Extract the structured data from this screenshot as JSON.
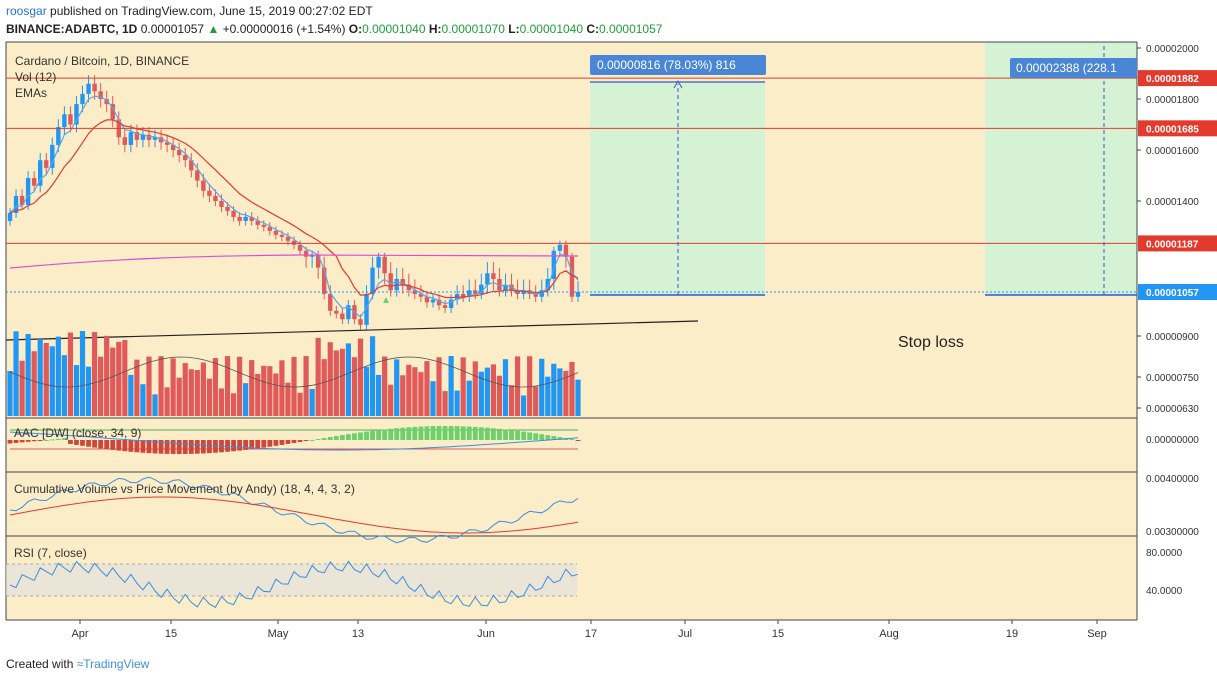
{
  "header": {
    "user": "roosgar",
    "published": " published on TradingView.com, June 15, 2019 00:27:02 EDT",
    "symbol": "BINANCE:ADABTC, 1D",
    "last": "0.00001057",
    "change": "+0.00000016 (+1.54%)",
    "o_label": "O:",
    "o": "0.00001040",
    "h_label": "H:",
    "h": "0.00001070",
    "l_label": "L:",
    "l": "0.00001040",
    "c_label": "C:",
    "c": "0.00001057"
  },
  "legend": {
    "title": "Cardano / Bitcoin, 1D, BINANCE",
    "vol": "Vol (12)",
    "emas": "EMAs"
  },
  "annotations": {
    "measure1": "0.00000816 (78.03%) 816",
    "measure2": "0.00002388 (228.1",
    "stop_loss": "Stop loss"
  },
  "price_axis": {
    "ticks": [
      "0.00002000",
      "0.00001800",
      "0.00001600",
      "0.00001400",
      "0.00000900",
      "0.00000750",
      "0.00000630"
    ],
    "levels": [
      "0.00001882",
      "0.00001685",
      "0.00001187"
    ],
    "current": "0.00001057"
  },
  "panes": {
    "aac": {
      "title": "AAC [DW] (close, 34, 9)",
      "axis": "0.00000000"
    },
    "cvpm": {
      "title": "Cumulative Volume vs Price Movement (by Andy) (18, 4, 4, 3, 2)",
      "axis_top": "0.00400000",
      "axis_bottom": "0.00300000"
    },
    "rsi": {
      "title": "RSI (7, close)",
      "axis_top": "80.0000",
      "axis_bottom": "40.0000"
    }
  },
  "time_axis": [
    "Apr",
    "15",
    "May",
    "13",
    "Jun",
    "17",
    "Jul",
    "15",
    "Aug",
    "19",
    "Sep"
  ],
  "footer": {
    "created": "Created with ",
    "brand": "TradingView"
  },
  "colors": {
    "bg": "#fbedc8",
    "up": "#2196f3",
    "down": "#e05a5a",
    "ema_fast": "#5aa6e8",
    "ema_slow": "#e23b2e",
    "ma200": "#d94fd9",
    "level": "#e23b2e",
    "target": "#d6f2d4",
    "label_blue": "#4a86d6"
  },
  "chart_data": {
    "type": "candlestick",
    "title": "Cardano / Bitcoin, 1D, BINANCE",
    "ylim": [
      8.7e-06,
      2e-05
    ],
    "closes": [
      1.34e-05,
      1.42e-05,
      1.38e-05,
      1.49e-05,
      1.46e-05,
      1.56e-05,
      1.53e-05,
      1.62e-05,
      1.69e-05,
      1.74e-05,
      1.7e-05,
      1.78e-05,
      1.82e-05,
      1.86e-05,
      1.83e-05,
      1.8e-05,
      1.78e-05,
      1.72e-05,
      1.65e-05,
      1.62e-05,
      1.67e-05,
      1.64e-05,
      1.66e-05,
      1.64e-05,
      1.65e-05,
      1.63e-05,
      1.62e-05,
      1.6e-05,
      1.58e-05,
      1.56e-05,
      1.52e-05,
      1.48e-05,
      1.44e-05,
      1.42e-05,
      1.4e-05,
      1.37e-05,
      1.35e-05,
      1.32e-05,
      1.3e-05,
      1.32e-05,
      1.3e-05,
      1.28e-05,
      1.27e-05,
      1.25e-05,
      1.23e-05,
      1.22e-05,
      1.2e-05,
      1.18e-05,
      1.15e-05,
      1.12e-05,
      1.13e-05,
      1.1e-05,
      1.05e-05,
      9.9e-06,
      9.8e-06,
      9.6e-06,
      1.01e-05,
      9.6e-06,
      9.4e-06,
      1.05e-05,
      1.1e-05,
      1.12e-05,
      1.09e-05,
      1.06e-05,
      1.08e-05,
      1.07e-05,
      1.06e-05,
      1.05e-05,
      1.04e-05,
      1.02e-05,
      1.03e-05,
      1.01e-05,
      1e-05,
      1.03e-05,
      1.05e-05,
      1.04e-05,
      1.06e-05,
      1.05e-05,
      1.07e-05,
      1.09e-05,
      1.08e-05,
      1.06e-05,
      1.07e-05,
      1.06e-05,
      1.05e-05,
      1.06e-05,
      1.05e-05,
      1.04e-05,
      1.06e-05,
      1.08e-05,
      1.15e-05,
      1.18e-05,
      1.12e-05,
      1.04e-05,
      1.057e-05
    ],
    "levels": [
      1.882e-05,
      1.685e-05,
      1.187e-05
    ],
    "current": 1.057e-05
  }
}
